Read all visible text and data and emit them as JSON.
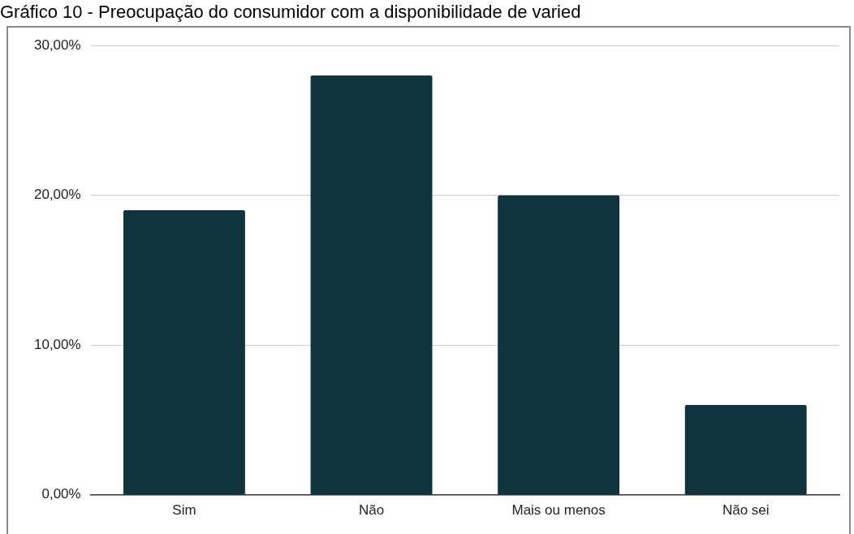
{
  "chart_data": {
    "type": "bar",
    "title": "Gráfico 10 - Preocupação do consumidor com a disponibilidade de varied",
    "categories": [
      "Sim",
      "Não",
      "Mais ou menos",
      "Não sei"
    ],
    "values": [
      19,
      28,
      20,
      6
    ],
    "color": "#10343e",
    "ylim": [
      0,
      30
    ],
    "yticks": [
      {
        "value": 0,
        "label": "0,00%"
      },
      {
        "value": 10,
        "label": "10,00%"
      },
      {
        "value": 20,
        "label": "20,00%"
      },
      {
        "value": 30,
        "label": "30,00%"
      }
    ],
    "grid": "y",
    "legend": false
  }
}
